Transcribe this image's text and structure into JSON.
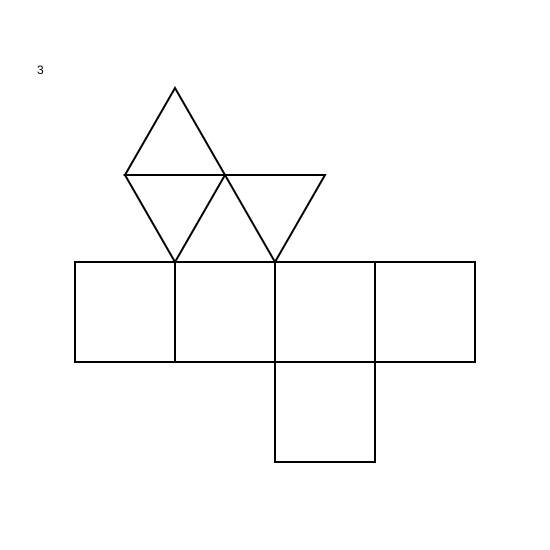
{
  "figure_label": "3",
  "diagram": {
    "line_color": "#000000",
    "background_color": "#ffffff",
    "faces": [
      {
        "id": "triangle-top",
        "shape": "triangle"
      },
      {
        "id": "triangle-middle-inverted",
        "shape": "triangle"
      },
      {
        "id": "triangle-right-inverted",
        "shape": "triangle"
      },
      {
        "id": "square-1",
        "shape": "square"
      },
      {
        "id": "square-2",
        "shape": "square"
      },
      {
        "id": "square-3",
        "shape": "square"
      },
      {
        "id": "square-4",
        "shape": "square"
      },
      {
        "id": "square-bottom",
        "shape": "square"
      }
    ]
  }
}
